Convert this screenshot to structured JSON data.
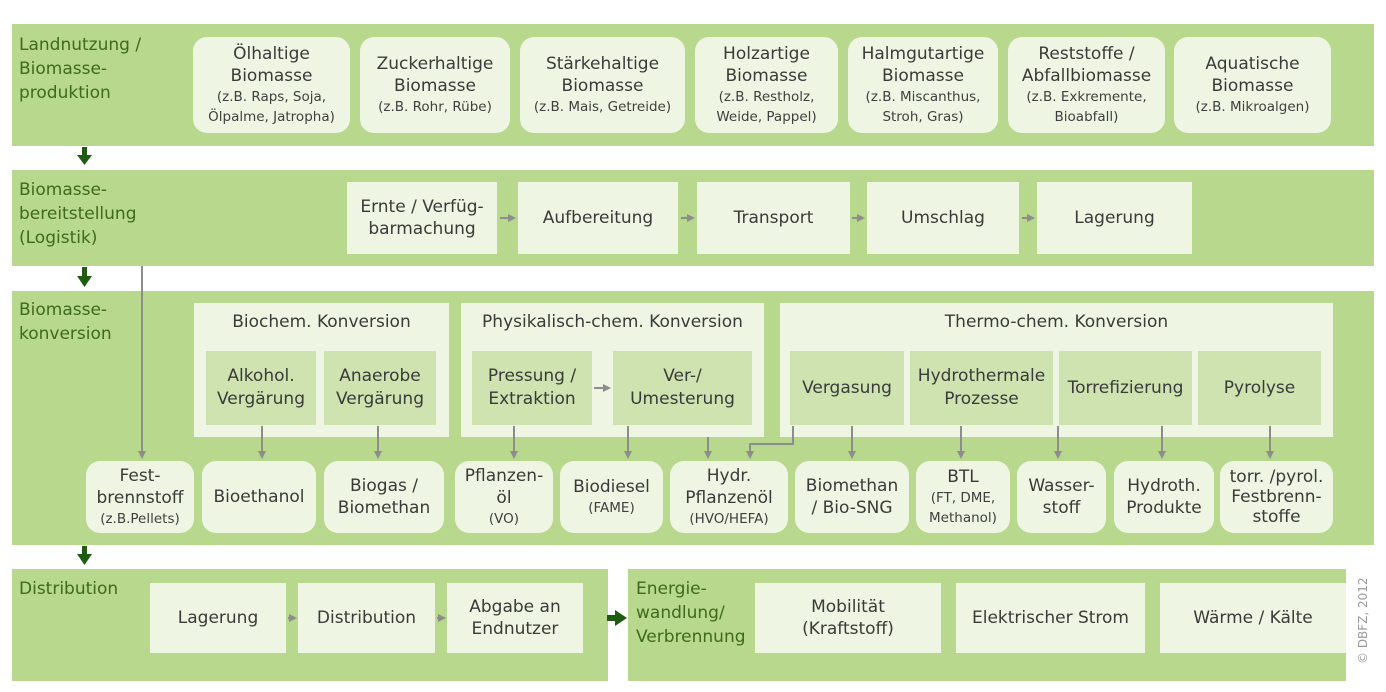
{
  "row1": {
    "label": "Landnutzung /\nBiomasse-\nproduktion",
    "items": [
      {
        "title": "Ölhaltige\nBiomasse",
        "sub": "(z.B. Raps, Soja,\nÖlpalme, Jatropha)"
      },
      {
        "title": "Zuckerhaltige\nBiomasse",
        "sub": "(z.B. Rohr, Rübe)"
      },
      {
        "title": "Stärkehaltige\nBiomasse",
        "sub": "(z.B. Mais, Getreide)"
      },
      {
        "title": "Holzartige\nBiomasse",
        "sub": "(z.B. Restholz,\nWeide, Pappel)"
      },
      {
        "title": "Halmgutartige\nBiomasse",
        "sub": "(z.B. Miscanthus,\nStroh, Gras)"
      },
      {
        "title": "Reststoffe /\nAbfallbiomasse",
        "sub": "(z.B. Exkremente,\nBioabfall)"
      },
      {
        "title": "Aquatische\nBiomasse",
        "sub": "(z.B. Mikroalgen)"
      }
    ]
  },
  "row2": {
    "label": "Biomasse-\nbereitstellung\n(Logistik)",
    "steps": [
      "Ernte / Verfüg-\nbarmachung",
      "Aufbereitung",
      "Transport",
      "Umschlag",
      "Lagerung"
    ]
  },
  "row3": {
    "label": "Biomasse-\nkonversion",
    "groups": [
      {
        "title": "Biochem. Konversion",
        "items": [
          "Alkohol.\nVergärung",
          "Anaerobe\nVergärung"
        ]
      },
      {
        "title": "Physikalisch-chem. Konversion",
        "items": [
          "Pressung /\nExtraktion",
          "Ver-/\nUmesterung"
        ]
      },
      {
        "title": "Thermo-chem. Konversion",
        "items": [
          "Vergasung",
          "Hydrothermale\nProzesse",
          "Torrefizierung",
          "Pyrolyse"
        ]
      }
    ],
    "products": [
      {
        "title": "Fest-\nbrennstoff",
        "sub": "(z.B.Pellets)"
      },
      {
        "title": "Bioethanol",
        "sub": ""
      },
      {
        "title": "Biogas /\nBiomethan",
        "sub": ""
      },
      {
        "title": "Pflanzen-\nöl",
        "sub": "(VO)"
      },
      {
        "title": "Biodiesel",
        "sub": "(FAME)"
      },
      {
        "title": "Hydr.\nPflanzenöl",
        "sub": "(HVO/HEFA)"
      },
      {
        "title": "Biomethan\n/ Bio-SNG",
        "sub": ""
      },
      {
        "title": "BTL",
        "sub": "(FT, DME,\nMethanol)"
      },
      {
        "title": "Wasser-\nstoff",
        "sub": ""
      },
      {
        "title": "Hydroth.\nProdukte",
        "sub": ""
      },
      {
        "title": "torr. /pyrol.\nFestbrenn-\nstoffe",
        "sub": ""
      }
    ]
  },
  "row4": {
    "label": "Distribution",
    "steps": [
      "Lagerung",
      "Distribution",
      "Abgabe an\nEndnutzer"
    ],
    "label2": "Energie-\nwandlung/\nVerbrennung",
    "uses": [
      "Mobilität\n(Kraftstoff)",
      "Elektrischer Strom",
      "Wärme / Kälte"
    ]
  },
  "copyright": "© DBFZ, 2012",
  "colors": {
    "band": "#b8d88d",
    "box": "#eef6e3",
    "inner": "#cfe3b1",
    "label": "#3d6a1c",
    "big_arrow": "#1f5c12",
    "small_arrow": "#8d8d8d"
  }
}
